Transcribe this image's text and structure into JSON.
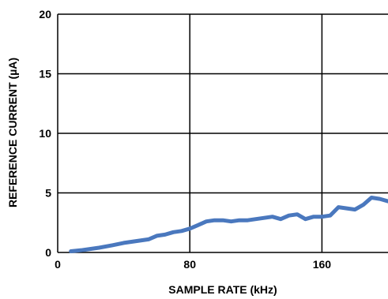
{
  "chart_data": {
    "type": "line",
    "title": "",
    "xlabel": "SAMPLE RATE (kHz)",
    "ylabel": "REFERENCE CURRENT (µA)",
    "xlim": [
      0,
      200
    ],
    "ylim": [
      0,
      20
    ],
    "xticks": [
      0,
      80,
      160
    ],
    "yticks": [
      0,
      5,
      10,
      15,
      20
    ],
    "grid": true,
    "legend": "none",
    "series": [
      {
        "color": "#4a78be",
        "x": [
          8,
          15,
          25,
          33,
          40,
          45,
          50,
          55,
          60,
          65,
          70,
          75,
          80,
          85,
          90,
          95,
          100,
          105,
          110,
          115,
          120,
          125,
          130,
          135,
          140,
          145,
          150,
          155,
          160,
          165,
          170,
          175,
          180,
          185,
          190,
          195,
          200
        ],
        "y": [
          0.1,
          0.2,
          0.4,
          0.6,
          0.8,
          0.9,
          1.0,
          1.1,
          1.4,
          1.5,
          1.7,
          1.8,
          2.0,
          2.3,
          2.6,
          2.7,
          2.7,
          2.6,
          2.7,
          2.7,
          2.8,
          2.9,
          3.0,
          2.8,
          3.1,
          3.2,
          2.8,
          3.0,
          3.0,
          3.1,
          3.8,
          3.7,
          3.6,
          4.0,
          4.6,
          4.5,
          4.3
        ]
      }
    ]
  }
}
